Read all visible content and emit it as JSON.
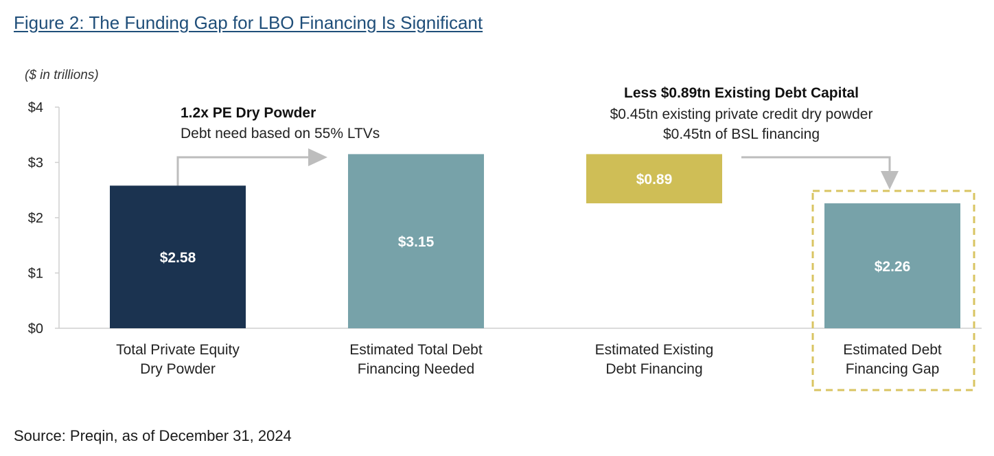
{
  "figure": {
    "title": "Figure 2: The Funding Gap for LBO Financing Is Significant",
    "source": "Source: Preqin, as of December 31, 2024"
  },
  "chart_data": {
    "type": "bar",
    "unit_label": "($ in trillions)",
    "ylim": [
      0,
      4
    ],
    "yticks": [
      0,
      1,
      2,
      3,
      4
    ],
    "ytick_labels": [
      "$0",
      "$1",
      "$2",
      "$3",
      "$4"
    ],
    "categories": [
      [
        "Total Private Equity",
        "Dry Powder"
      ],
      [
        "Estimated Total Debt",
        "Financing Needed"
      ],
      [
        "Estimated Existing",
        "Debt Financing"
      ],
      [
        "Estimated Debt",
        "Financing Gap"
      ]
    ],
    "bars": [
      {
        "bottom": 0,
        "top": 2.58,
        "label": "$2.58",
        "color": "#1b3350"
      },
      {
        "bottom": 0,
        "top": 3.15,
        "label": "$3.15",
        "color": "#77a2a9"
      },
      {
        "bottom": 2.26,
        "top": 3.15,
        "label": "$0.89",
        "color": "#cfbe56"
      },
      {
        "bottom": 0,
        "top": 2.26,
        "label": "$2.26",
        "color": "#77a2a9"
      }
    ],
    "highlight_color": "#d9c462",
    "arrow_color": "#bdbdbd",
    "annotations": {
      "left": {
        "bold": "1.2x PE Dry Powder",
        "lines": [
          "Debt need based on 55% LTVs"
        ]
      },
      "right": {
        "bold": "Less $0.89tn Existing Debt Capital",
        "lines": [
          "$0.45tn existing private credit dry powder",
          "$0.45tn of BSL financing"
        ]
      }
    },
    "grid": false,
    "legend": "none"
  }
}
